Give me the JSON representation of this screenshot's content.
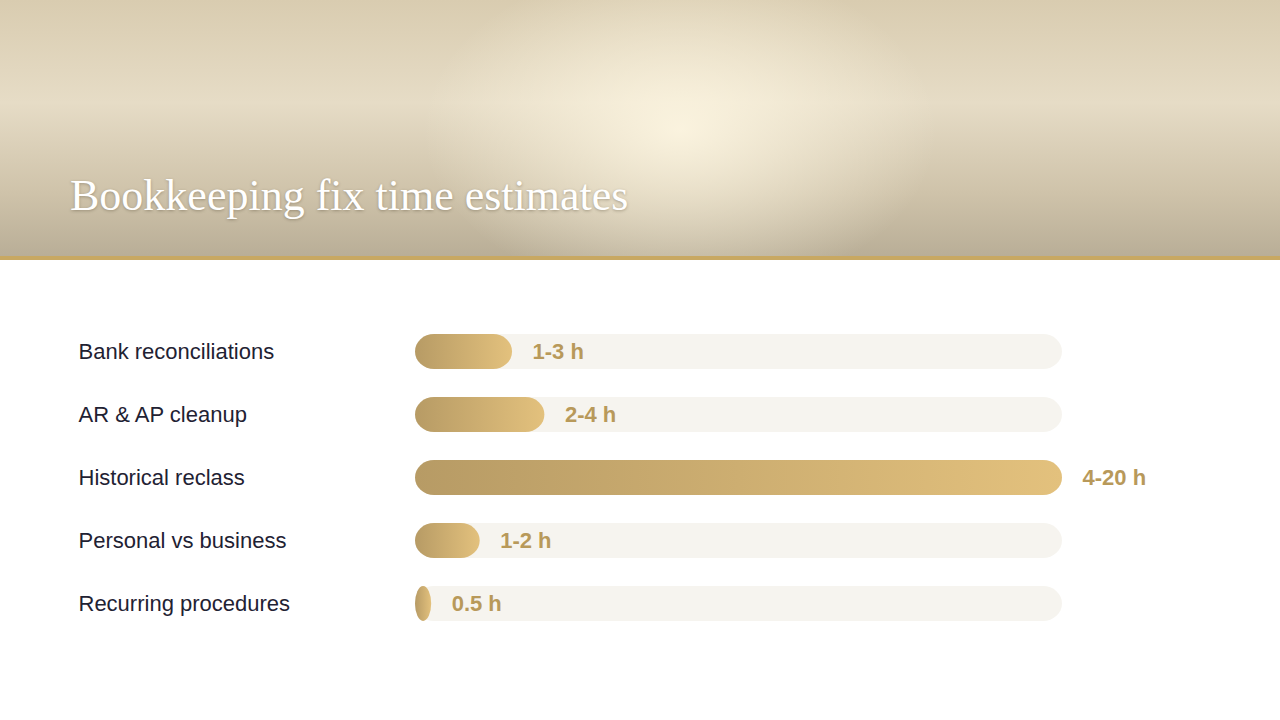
{
  "chart_data": {
    "type": "bar",
    "title": "Bookkeeping fix time estimates",
    "orientation": "horizontal",
    "categories": [
      "Bank reconciliations",
      "AR & AP cleanup",
      "Historical reclass",
      "Personal vs business",
      "Recurring procedures"
    ],
    "values": [
      3,
      4,
      20,
      2,
      0.5
    ],
    "value_labels": [
      "1-3 h",
      "2-4 h",
      "4-20 h",
      "1-2 h",
      "0.5 h"
    ],
    "color": "#c8aa6e",
    "xlim": [
      0,
      20
    ],
    "data_labels": true,
    "tick_labels": "y",
    "grid": false
  }
}
